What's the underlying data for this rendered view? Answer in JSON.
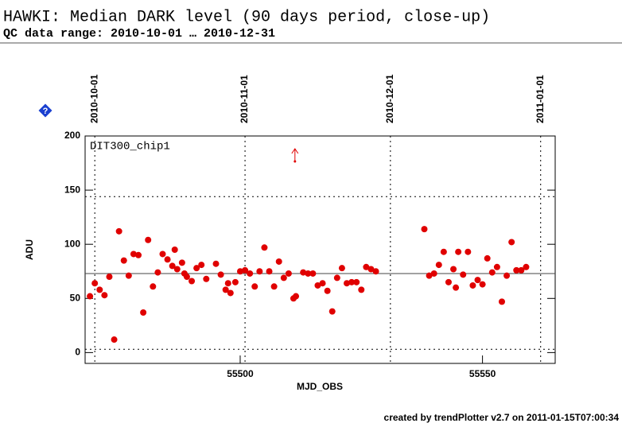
{
  "chart_data": {
    "type": "scatter",
    "title": "HAWKI: Median DARK level (90 days period, close-up)",
    "subtitle": "QC data range: 2010-10-01 … 2010-12-31",
    "panel_label": "DIT300_chip1",
    "ylabel": "ADU",
    "xlabel": "MJD_OBS",
    "footer": "created by trendPlotter v2.7 on 2011-01-15T07:00:34",
    "help_icon": "?",
    "color": "#e00000",
    "xlim": [
      55468,
      55565
    ],
    "ylim": [
      -10,
      200
    ],
    "xticks": [
      55500,
      55550
    ],
    "yticks": [
      0,
      50,
      100,
      150,
      200
    ],
    "date_ticks": [
      {
        "value": 55470,
        "label": "2010-10-01"
      },
      {
        "value": 55501,
        "label": "2010-11-01"
      },
      {
        "value": 55531,
        "label": "2010-12-01"
      },
      {
        "value": 55562,
        "label": "2011-01-01"
      }
    ],
    "median_line": 73,
    "limit_lines": [
      144,
      3
    ],
    "outliers_x": [
      55511.3
    ],
    "x": [
      55469,
      55470,
      55471,
      55472,
      55473,
      55474,
      55475,
      55476,
      55477,
      55478,
      55479,
      55480,
      55481,
      55482,
      55483,
      55484,
      55485,
      55486,
      55486.5,
      55487,
      55488,
      55488.5,
      55489,
      55490,
      55491,
      55492,
      55493,
      55495,
      55496,
      55497,
      55497.5,
      55498,
      55499,
      55500,
      55501,
      55502,
      55503,
      55504,
      55505,
      55506,
      55507,
      55508,
      55509,
      55510,
      55511,
      55511.5,
      55513,
      55514,
      55515,
      55516,
      55517,
      55518,
      55519,
      55520,
      55521,
      55522,
      55523,
      55524,
      55525,
      55526,
      55527,
      55528,
      55538,
      55539,
      55540,
      55541,
      55542,
      55543,
      55544,
      55544.5,
      55545,
      55546,
      55547,
      55548,
      55549,
      55550,
      55551,
      55552,
      55553,
      55554,
      55555,
      55556,
      55557,
      55558,
      55559
    ],
    "values": [
      52,
      64,
      58,
      53,
      70,
      12,
      112,
      85,
      71,
      91,
      90,
      37,
      104,
      61,
      74,
      91,
      86,
      80,
      95,
      77,
      83,
      73,
      70,
      66,
      78,
      81,
      68,
      82,
      72,
      58,
      64,
      55,
      65,
      75,
      76,
      73,
      61,
      75,
      97,
      75,
      61,
      84,
      69,
      73,
      50,
      52,
      74,
      73,
      73,
      62,
      64,
      57,
      38,
      69,
      78,
      64,
      65,
      65,
      58,
      79,
      77,
      75,
      114,
      71,
      73,
      81,
      93,
      65,
      77,
      60,
      93,
      72,
      93,
      62,
      67,
      63,
      87,
      74,
      79,
      47,
      71,
      102,
      76,
      76,
      79
    ]
  }
}
